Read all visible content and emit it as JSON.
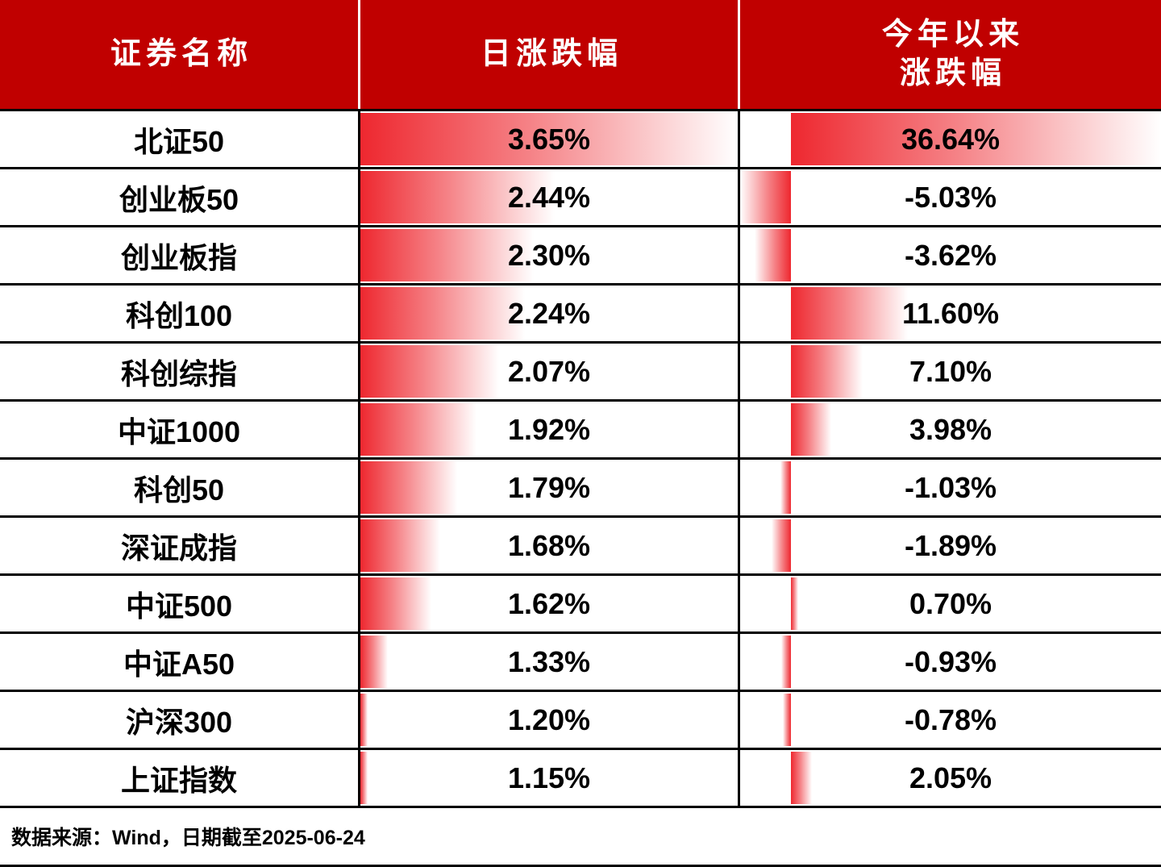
{
  "table": {
    "header": {
      "security_name": "证券名称",
      "daily_change": "日涨跌幅",
      "ytd_line1": "今年以来",
      "ytd_line2": "涨跌幅"
    },
    "rows": [
      {
        "name": "北证50",
        "daily_label": "3.65%",
        "daily_value": 3.65,
        "ytd_label": "36.64%",
        "ytd_value": 36.64
      },
      {
        "name": "创业板50",
        "daily_label": "2.44%",
        "daily_value": 2.44,
        "ytd_label": "-5.03%",
        "ytd_value": -5.03
      },
      {
        "name": "创业板指",
        "daily_label": "2.30%",
        "daily_value": 2.3,
        "ytd_label": "-3.62%",
        "ytd_value": -3.62
      },
      {
        "name": "科创100",
        "daily_label": "2.24%",
        "daily_value": 2.24,
        "ytd_label": "11.60%",
        "ytd_value": 11.6
      },
      {
        "name": "科创综指",
        "daily_label": "2.07%",
        "daily_value": 2.07,
        "ytd_label": "7.10%",
        "ytd_value": 7.1
      },
      {
        "name": "中证1000",
        "daily_label": "1.92%",
        "daily_value": 1.92,
        "ytd_label": "3.98%",
        "ytd_value": 3.98
      },
      {
        "name": "科创50",
        "daily_label": "1.79%",
        "daily_value": 1.79,
        "ytd_label": "-1.03%",
        "ytd_value": -1.03
      },
      {
        "name": "深证成指",
        "daily_label": "1.68%",
        "daily_value": 1.68,
        "ytd_label": "-1.89%",
        "ytd_value": -1.89
      },
      {
        "name": "中证500",
        "daily_label": "1.62%",
        "daily_value": 1.62,
        "ytd_label": "0.70%",
        "ytd_value": 0.7
      },
      {
        "name": "中证A50",
        "daily_label": "1.33%",
        "daily_value": 1.33,
        "ytd_label": "-0.93%",
        "ytd_value": -0.93
      },
      {
        "name": "沪深300",
        "daily_label": "1.20%",
        "daily_value": 1.2,
        "ytd_label": "-0.78%",
        "ytd_value": -0.78
      },
      {
        "name": "上证指数",
        "daily_label": "1.15%",
        "daily_value": 1.15,
        "ytd_label": "2.05%",
        "ytd_value": 2.05
      }
    ],
    "footer": "数据来源：Wind，日期截至2025-06-24"
  },
  "colors": {
    "header_bg": "#c00000",
    "bar_red": "#ed1c24",
    "border": "#000000"
  },
  "chart_data": {
    "type": "table",
    "title": "",
    "columns": [
      "证券名称",
      "日涨跌幅",
      "今年以来涨跌幅"
    ],
    "rows": [
      [
        "北证50",
        3.65,
        36.64
      ],
      [
        "创业板50",
        2.44,
        -5.03
      ],
      [
        "创业板指",
        2.3,
        -3.62
      ],
      [
        "科创100",
        2.24,
        11.6
      ],
      [
        "科创综指",
        2.07,
        7.1
      ],
      [
        "中证1000",
        1.92,
        3.98
      ],
      [
        "科创50",
        1.79,
        -1.03
      ],
      [
        "深证成指",
        1.68,
        -1.89
      ],
      [
        "中证500",
        1.62,
        0.7
      ],
      [
        "中证A50",
        1.33,
        -0.93
      ],
      [
        "沪深300",
        1.2,
        -0.78
      ],
      [
        "上证指数",
        1.15,
        2.05
      ]
    ],
    "units": "percent",
    "legend_position": "none",
    "notes": "Red gradient data bars: daily column scales min-to-max from left edge; YTD column has zero axis at ~12% with negative bars extending left",
    "source": "数据来源：Wind，日期截至2025-06-24"
  }
}
